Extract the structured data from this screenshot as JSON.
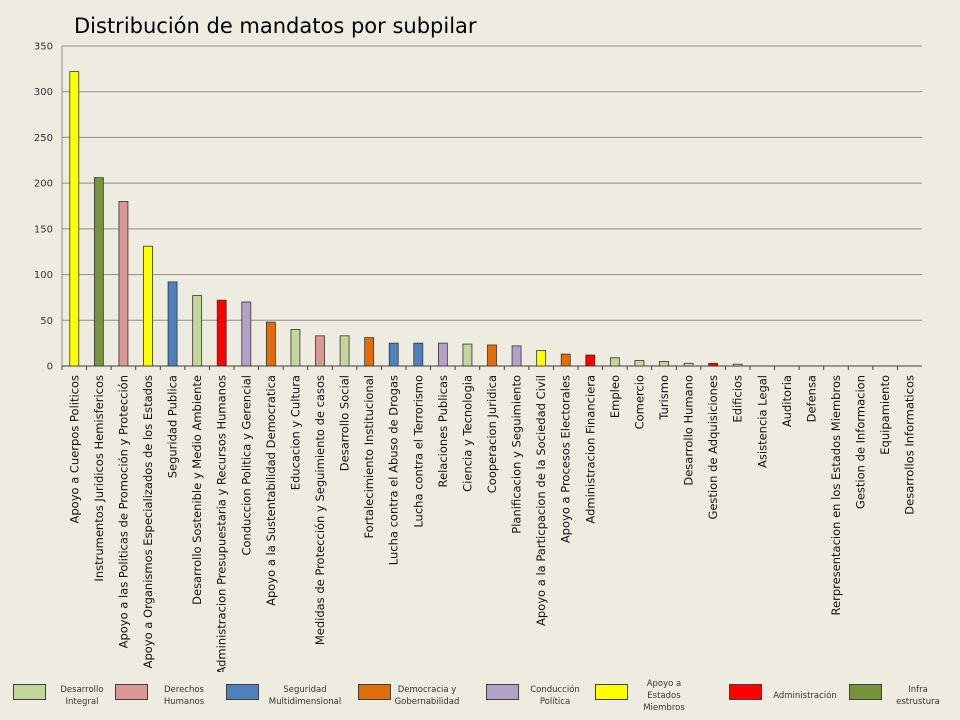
{
  "chart_data": {
    "type": "bar",
    "title": "Distribución de mandatos por subpilar",
    "ylim": [
      0,
      350
    ],
    "yticks": [
      0,
      50,
      100,
      150,
      200,
      250,
      300,
      350
    ],
    "grid": true,
    "legend_position": "bottom",
    "categories": [
      "Apoyo a Cuerpos Politicos",
      "Instrumentos Juridicos Hemisfericos",
      "Apoyo a las Politicas de Promoción y Protección",
      "Apoyo a Organismos Especializados de los Estados",
      "Seguridad Publica",
      "Desarrollo Sostenible y Medio Ambiente",
      "Administracion Presupuestaria y Recursos Humanos",
      "Conduccion Politica y Gerencial",
      "Apoyo a la Sustentabilidad Democratica",
      "Educacion y Cultura",
      "Medidas de Protección y Seguimiento de casos",
      "Desarrollo Social",
      "Fortalecimiento Institucional",
      "Lucha contra el Abuso de Drogas",
      "Lucha contra el Terrorismo",
      "Relaciones Publicas",
      "Ciencia y Tecnologia",
      "Cooperacion Juridica",
      "Planificacion y Seguimiento",
      "Apoyo a la Particpacion de la Sociedad Civil",
      "Apoyo a Procesos Electorales",
      "Administracion Financiera",
      "Empleo",
      "Comercio",
      "Turismo",
      "Desarrollo Humano",
      "Gestion de Adquisiciones",
      "Edificios",
      "Asistencia Legal",
      "Auditoria",
      "Defensa",
      "Rerpresentacion en los Estados Miembros",
      "Gestion de Informacion",
      "Equipamiento",
      "Desarrollos Informaticos"
    ],
    "values": [
      322,
      206,
      180,
      131,
      92,
      77,
      72,
      70,
      48,
      40,
      33,
      33,
      31,
      25,
      25,
      25,
      24,
      23,
      22,
      17,
      13,
      12,
      9,
      6,
      5,
      3,
      3,
      2,
      0,
      0,
      0,
      0,
      0,
      0,
      0
    ],
    "bar_groups": [
      5,
      7,
      1,
      5,
      2,
      0,
      6,
      4,
      3,
      0,
      1,
      0,
      3,
      2,
      2,
      4,
      0,
      3,
      4,
      5,
      3,
      6,
      0,
      0,
      0,
      0,
      6,
      0,
      0,
      0,
      0,
      0,
      0,
      0,
      0
    ],
    "legend": [
      {
        "label": "Desarrollo\nIntegral",
        "color": "#c3d69b"
      },
      {
        "label": "Derechos\nHumanos",
        "color": "#d99795"
      },
      {
        "label": "Seguridad\nMultidimensional",
        "color": "#4f81bd"
      },
      {
        "label": "Democracia y\nGobernabilidad",
        "color": "#e36c0a"
      },
      {
        "label": "Conducción\nPolítica",
        "color": "#b3a2c7"
      },
      {
        "label": "Apoyo a\nEstados\nMiembros",
        "color": "#ffff00"
      },
      {
        "label": "Administración",
        "color": "#ff0000"
      },
      {
        "label": "Infra\nestrustura",
        "color": "#77933c"
      }
    ]
  }
}
